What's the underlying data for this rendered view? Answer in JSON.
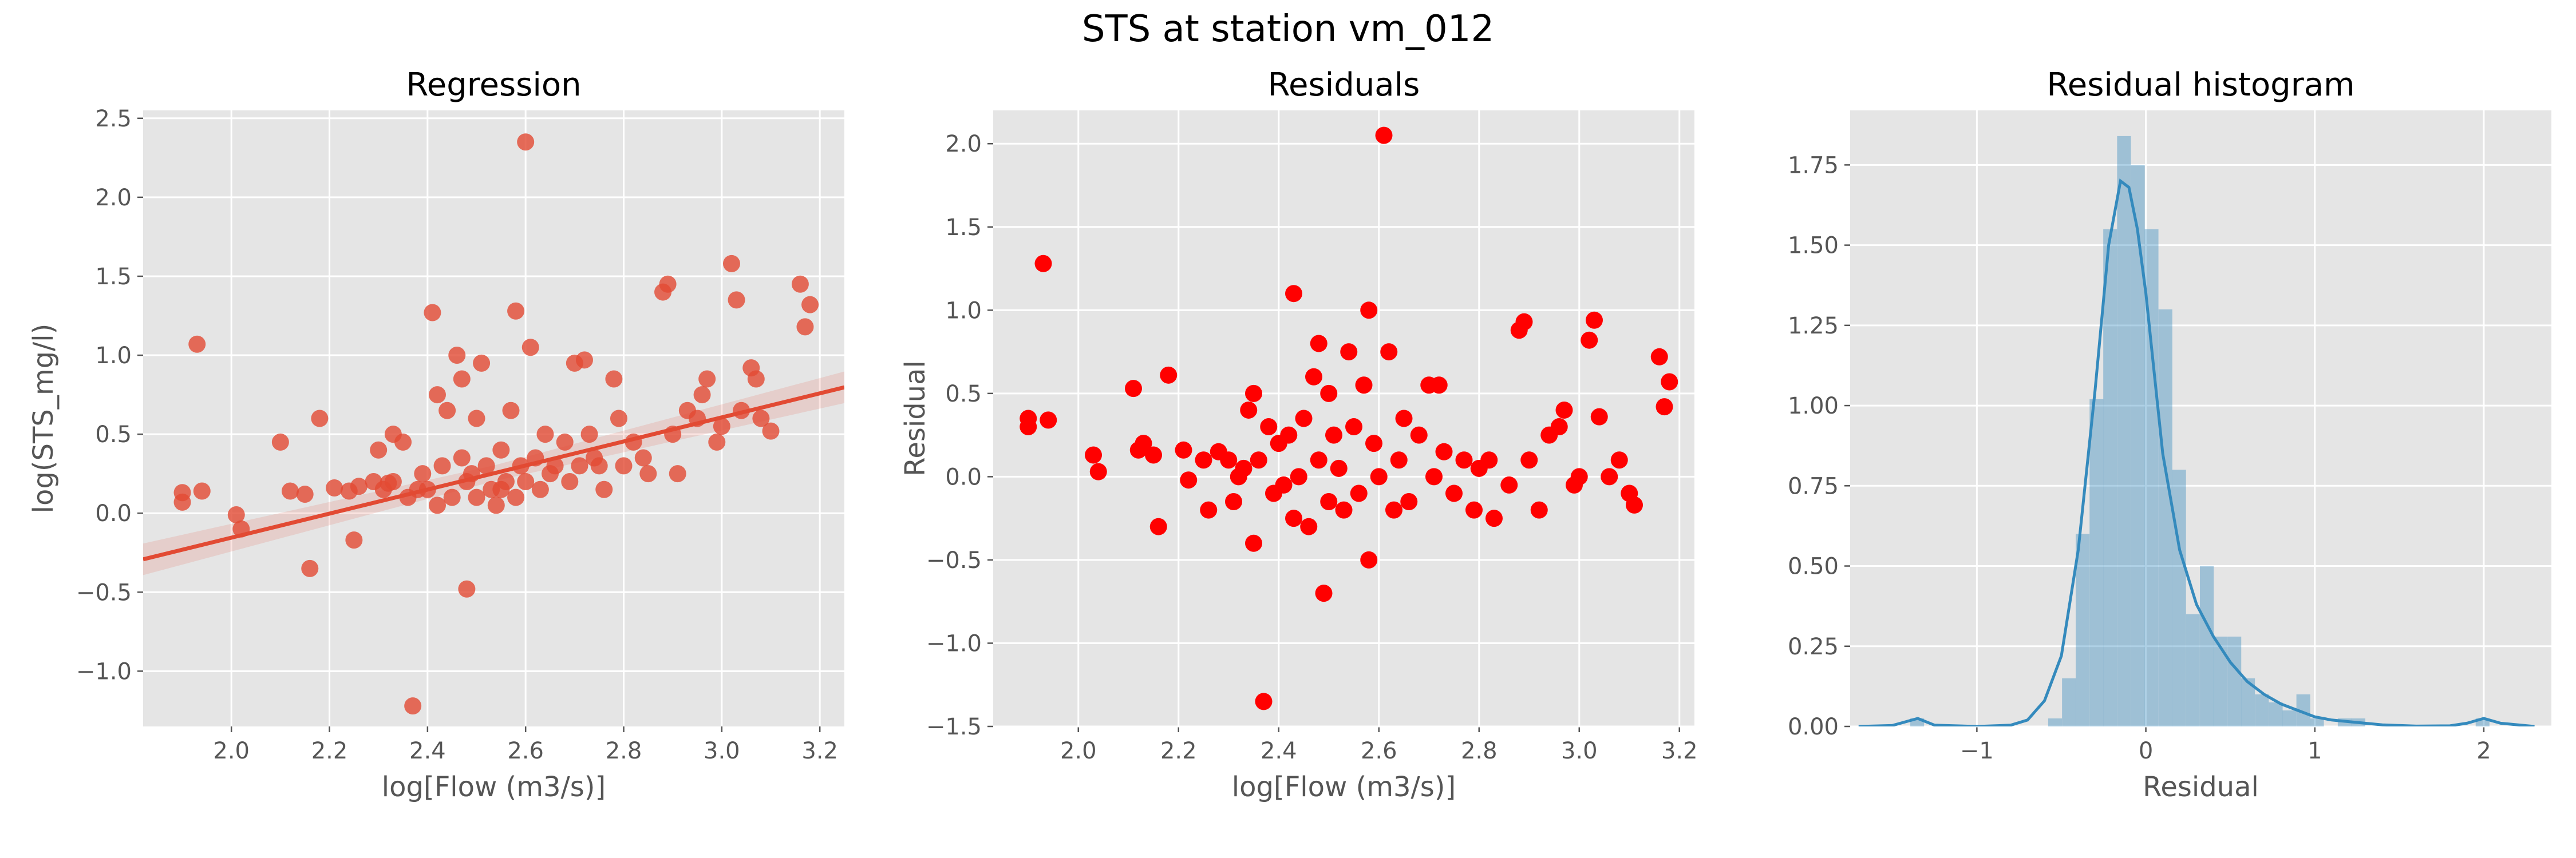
{
  "suptitle": "STS at station vm_012",
  "colors": {
    "panel_bg": "#e5e5e5",
    "grid": "#ffffff",
    "tick_label": "#555555",
    "regression_points": "#e24a33",
    "regression_line": "#e24a33",
    "residual_points": "#ff0000",
    "histogram_bars": "#348abd",
    "kde_line": "#348abd"
  },
  "chart_data": [
    {
      "type": "scatter",
      "title": "Regression",
      "xlabel": "log[Flow (m3/s)]",
      "ylabel": "log(STS_mg/l)",
      "xlim": [
        1.82,
        3.25
      ],
      "ylim": [
        -1.35,
        2.55
      ],
      "xticks": [
        2.0,
        2.2,
        2.4,
        2.6,
        2.8,
        3.0,
        3.2
      ],
      "yticks": [
        -1.0,
        -0.5,
        0.0,
        0.5,
        1.0,
        1.5,
        2.0,
        2.5
      ],
      "grid": true,
      "regression_line": {
        "slope": 0.7614,
        "intercept": -1.6778,
        "ci_halfwidth": [
          0.1,
          0.05,
          0.1
        ]
      },
      "points": [
        [
          1.9,
          0.07
        ],
        [
          1.9,
          0.13
        ],
        [
          1.93,
          1.07
        ],
        [
          1.94,
          0.14
        ],
        [
          2.01,
          -0.01
        ],
        [
          2.02,
          -0.1
        ],
        [
          2.1,
          0.45
        ],
        [
          2.12,
          0.14
        ],
        [
          2.15,
          0.12
        ],
        [
          2.16,
          -0.35
        ],
        [
          2.18,
          0.6
        ],
        [
          2.21,
          0.16
        ],
        [
          2.24,
          0.14
        ],
        [
          2.25,
          -0.17
        ],
        [
          2.26,
          0.17
        ],
        [
          2.29,
          0.2
        ],
        [
          2.3,
          0.4
        ],
        [
          2.31,
          0.15
        ],
        [
          2.32,
          0.19
        ],
        [
          2.33,
          0.2
        ],
        [
          2.33,
          0.5
        ],
        [
          2.35,
          0.45
        ],
        [
          2.36,
          0.1
        ],
        [
          2.37,
          -1.22
        ],
        [
          2.38,
          0.15
        ],
        [
          2.39,
          0.25
        ],
        [
          2.4,
          0.15
        ],
        [
          2.41,
          1.27
        ],
        [
          2.42,
          0.75
        ],
        [
          2.42,
          0.05
        ],
        [
          2.43,
          0.3
        ],
        [
          2.44,
          0.65
        ],
        [
          2.45,
          0.1
        ],
        [
          2.46,
          1.0
        ],
        [
          2.47,
          0.35
        ],
        [
          2.47,
          0.85
        ],
        [
          2.48,
          0.2
        ],
        [
          2.48,
          -0.48
        ],
        [
          2.49,
          0.25
        ],
        [
          2.5,
          0.1
        ],
        [
          2.5,
          0.6
        ],
        [
          2.51,
          0.95
        ],
        [
          2.52,
          0.3
        ],
        [
          2.53,
          0.15
        ],
        [
          2.54,
          0.05
        ],
        [
          2.55,
          0.4
        ],
        [
          2.55,
          0.15
        ],
        [
          2.56,
          0.2
        ],
        [
          2.57,
          0.65
        ],
        [
          2.58,
          1.28
        ],
        [
          2.58,
          0.1
        ],
        [
          2.59,
          0.3
        ],
        [
          2.6,
          2.35
        ],
        [
          2.6,
          0.2
        ],
        [
          2.61,
          1.05
        ],
        [
          2.62,
          0.35
        ],
        [
          2.63,
          0.15
        ],
        [
          2.64,
          0.5
        ],
        [
          2.65,
          0.25
        ],
        [
          2.66,
          0.3
        ],
        [
          2.68,
          0.45
        ],
        [
          2.69,
          0.2
        ],
        [
          2.7,
          0.95
        ],
        [
          2.71,
          0.3
        ],
        [
          2.72,
          0.97
        ],
        [
          2.73,
          0.5
        ],
        [
          2.74,
          0.35
        ],
        [
          2.75,
          0.3
        ],
        [
          2.76,
          0.15
        ],
        [
          2.78,
          0.85
        ],
        [
          2.79,
          0.6
        ],
        [
          2.8,
          0.3
        ],
        [
          2.82,
          0.45
        ],
        [
          2.84,
          0.35
        ],
        [
          2.85,
          0.25
        ],
        [
          2.88,
          1.4
        ],
        [
          2.89,
          1.45
        ],
        [
          2.9,
          0.5
        ],
        [
          2.91,
          0.25
        ],
        [
          2.93,
          0.65
        ],
        [
          2.95,
          0.6
        ],
        [
          2.96,
          0.75
        ],
        [
          2.97,
          0.85
        ],
        [
          2.99,
          0.45
        ],
        [
          3.0,
          0.55
        ],
        [
          3.02,
          1.58
        ],
        [
          3.03,
          1.35
        ],
        [
          3.04,
          0.65
        ],
        [
          3.06,
          0.92
        ],
        [
          3.07,
          0.85
        ],
        [
          3.08,
          0.6
        ],
        [
          3.1,
          0.52
        ],
        [
          3.16,
          1.45
        ],
        [
          3.17,
          1.18
        ],
        [
          3.18,
          1.32
        ]
      ]
    },
    {
      "type": "scatter",
      "title": "Residuals",
      "xlabel": "log[Flow (m3/s)]",
      "ylabel": "Residual",
      "xlim": [
        1.83,
        3.23
      ],
      "ylim": [
        -1.5,
        2.2
      ],
      "xticks": [
        2.0,
        2.2,
        2.4,
        2.6,
        2.8,
        3.0,
        3.2
      ],
      "yticks": [
        -1.5,
        -1.0,
        -0.5,
        0.0,
        0.5,
        1.0,
        1.5,
        2.0
      ],
      "grid": true,
      "points": [
        [
          1.9,
          0.35
        ],
        [
          1.9,
          0.3
        ],
        [
          1.93,
          1.28
        ],
        [
          1.94,
          0.34
        ],
        [
          2.03,
          0.13
        ],
        [
          2.04,
          0.03
        ],
        [
          2.11,
          0.53
        ],
        [
          2.12,
          0.16
        ],
        [
          2.13,
          0.2
        ],
        [
          2.15,
          0.13
        ],
        [
          2.16,
          -0.3
        ],
        [
          2.18,
          0.61
        ],
        [
          2.21,
          0.16
        ],
        [
          2.22,
          -0.02
        ],
        [
          2.25,
          0.1
        ],
        [
          2.26,
          -0.2
        ],
        [
          2.28,
          0.15
        ],
        [
          2.3,
          0.1
        ],
        [
          2.31,
          -0.15
        ],
        [
          2.32,
          0.0
        ],
        [
          2.33,
          0.05
        ],
        [
          2.34,
          0.4
        ],
        [
          2.35,
          -0.4
        ],
        [
          2.35,
          0.5
        ],
        [
          2.36,
          0.1
        ],
        [
          2.37,
          -1.35
        ],
        [
          2.38,
          0.3
        ],
        [
          2.39,
          -0.1
        ],
        [
          2.4,
          0.2
        ],
        [
          2.41,
          -0.05
        ],
        [
          2.42,
          0.25
        ],
        [
          2.43,
          1.1
        ],
        [
          2.43,
          -0.25
        ],
        [
          2.44,
          0.0
        ],
        [
          2.45,
          0.35
        ],
        [
          2.46,
          -0.3
        ],
        [
          2.47,
          0.6
        ],
        [
          2.48,
          0.8
        ],
        [
          2.48,
          0.1
        ],
        [
          2.49,
          -0.7
        ],
        [
          2.5,
          0.5
        ],
        [
          2.5,
          -0.15
        ],
        [
          2.51,
          0.25
        ],
        [
          2.52,
          0.05
        ],
        [
          2.53,
          -0.2
        ],
        [
          2.54,
          0.75
        ],
        [
          2.55,
          0.3
        ],
        [
          2.56,
          -0.1
        ],
        [
          2.57,
          0.55
        ],
        [
          2.58,
          1.0
        ],
        [
          2.58,
          -0.5
        ],
        [
          2.59,
          0.2
        ],
        [
          2.6,
          0.0
        ],
        [
          2.61,
          2.05
        ],
        [
          2.62,
          0.75
        ],
        [
          2.63,
          -0.2
        ],
        [
          2.64,
          0.1
        ],
        [
          2.65,
          0.35
        ],
        [
          2.66,
          -0.15
        ],
        [
          2.68,
          0.25
        ],
        [
          2.7,
          0.55
        ],
        [
          2.71,
          0.0
        ],
        [
          2.72,
          0.55
        ],
        [
          2.73,
          0.15
        ],
        [
          2.75,
          -0.1
        ],
        [
          2.77,
          0.1
        ],
        [
          2.79,
          -0.2
        ],
        [
          2.8,
          0.05
        ],
        [
          2.82,
          0.1
        ],
        [
          2.83,
          -0.25
        ],
        [
          2.86,
          -0.05
        ],
        [
          2.88,
          0.88
        ],
        [
          2.89,
          0.93
        ],
        [
          2.9,
          0.1
        ],
        [
          2.92,
          -0.2
        ],
        [
          2.94,
          0.25
        ],
        [
          2.96,
          0.3
        ],
        [
          2.97,
          0.4
        ],
        [
          2.99,
          -0.05
        ],
        [
          3.0,
          0.0
        ],
        [
          3.02,
          0.82
        ],
        [
          3.03,
          0.94
        ],
        [
          3.04,
          0.36
        ],
        [
          3.06,
          0.0
        ],
        [
          3.08,
          0.1
        ],
        [
          3.1,
          -0.1
        ],
        [
          3.11,
          -0.17
        ],
        [
          3.16,
          0.72
        ],
        [
          3.17,
          0.42
        ],
        [
          3.18,
          0.57
        ]
      ]
    },
    {
      "type": "histogram",
      "title": "Residual histogram",
      "xlabel": "Residual",
      "ylabel": "",
      "xlim": [
        -1.75,
        2.4
      ],
      "ylim": [
        0,
        1.92
      ],
      "xticks": [
        -1,
        0,
        1,
        2
      ],
      "yticks": [
        0.0,
        0.25,
        0.5,
        0.75,
        1.0,
        1.25,
        1.5,
        1.75
      ],
      "grid": true,
      "bin_width": 0.0816,
      "bins": [
        {
          "x": -1.394,
          "density": 0.025
        },
        {
          "x": -1.312,
          "density": 0.0
        },
        {
          "x": -1.231,
          "density": 0.0
        },
        {
          "x": -1.149,
          "density": 0.0
        },
        {
          "x": -1.068,
          "density": 0.0
        },
        {
          "x": -0.986,
          "density": 0.0
        },
        {
          "x": -0.904,
          "density": 0.0
        },
        {
          "x": -0.823,
          "density": 0.0
        },
        {
          "x": -0.741,
          "density": 0.0
        },
        {
          "x": -0.66,
          "density": 0.0
        },
        {
          "x": -0.578,
          "density": 0.025
        },
        {
          "x": -0.496,
          "density": 0.15
        },
        {
          "x": -0.415,
          "density": 0.6
        },
        {
          "x": -0.333,
          "density": 1.02
        },
        {
          "x": -0.252,
          "density": 1.55
        },
        {
          "x": -0.17,
          "density": 1.84
        },
        {
          "x": -0.088,
          "density": 1.75
        },
        {
          "x": -0.007,
          "density": 1.55
        },
        {
          "x": 0.075,
          "density": 1.3
        },
        {
          "x": 0.156,
          "density": 0.8
        },
        {
          "x": 0.238,
          "density": 0.35
        },
        {
          "x": 0.32,
          "density": 0.5
        },
        {
          "x": 0.401,
          "density": 0.28
        },
        {
          "x": 0.483,
          "density": 0.28
        },
        {
          "x": 0.564,
          "density": 0.15
        },
        {
          "x": 0.646,
          "density": 0.1
        },
        {
          "x": 0.728,
          "density": 0.075
        },
        {
          "x": 0.809,
          "density": 0.05
        },
        {
          "x": 0.891,
          "density": 0.1
        },
        {
          "x": 0.972,
          "density": 0.025
        },
        {
          "x": 1.054,
          "density": 0.0
        },
        {
          "x": 1.136,
          "density": 0.025
        },
        {
          "x": 1.217,
          "density": 0.025
        },
        {
          "x": 1.299,
          "density": 0.0
        },
        {
          "x": 1.38,
          "density": 0.0
        },
        {
          "x": 1.462,
          "density": 0.0
        },
        {
          "x": 1.544,
          "density": 0.0
        },
        {
          "x": 1.625,
          "density": 0.0
        },
        {
          "x": 1.707,
          "density": 0.0
        },
        {
          "x": 1.788,
          "density": 0.0
        },
        {
          "x": 1.87,
          "density": 0.0
        },
        {
          "x": 1.952,
          "density": 0.025
        }
      ],
      "kde": [
        [
          -1.7,
          0.0
        ],
        [
          -1.5,
          0.003
        ],
        [
          -1.35,
          0.025
        ],
        [
          -1.25,
          0.004
        ],
        [
          -1.0,
          0.0
        ],
        [
          -0.8,
          0.004
        ],
        [
          -0.7,
          0.02
        ],
        [
          -0.6,
          0.08
        ],
        [
          -0.5,
          0.22
        ],
        [
          -0.4,
          0.55
        ],
        [
          -0.3,
          1.05
        ],
        [
          -0.22,
          1.5
        ],
        [
          -0.15,
          1.7
        ],
        [
          -0.1,
          1.68
        ],
        [
          -0.05,
          1.55
        ],
        [
          0.0,
          1.35
        ],
        [
          0.05,
          1.1
        ],
        [
          0.1,
          0.85
        ],
        [
          0.2,
          0.55
        ],
        [
          0.3,
          0.38
        ],
        [
          0.4,
          0.28
        ],
        [
          0.5,
          0.2
        ],
        [
          0.6,
          0.14
        ],
        [
          0.7,
          0.1
        ],
        [
          0.8,
          0.07
        ],
        [
          0.9,
          0.05
        ],
        [
          1.0,
          0.03
        ],
        [
          1.1,
          0.02
        ],
        [
          1.2,
          0.015
        ],
        [
          1.4,
          0.005
        ],
        [
          1.6,
          0.001
        ],
        [
          1.8,
          0.002
        ],
        [
          1.9,
          0.01
        ],
        [
          2.0,
          0.025
        ],
        [
          2.1,
          0.01
        ],
        [
          2.3,
          0.0
        ]
      ]
    }
  ]
}
